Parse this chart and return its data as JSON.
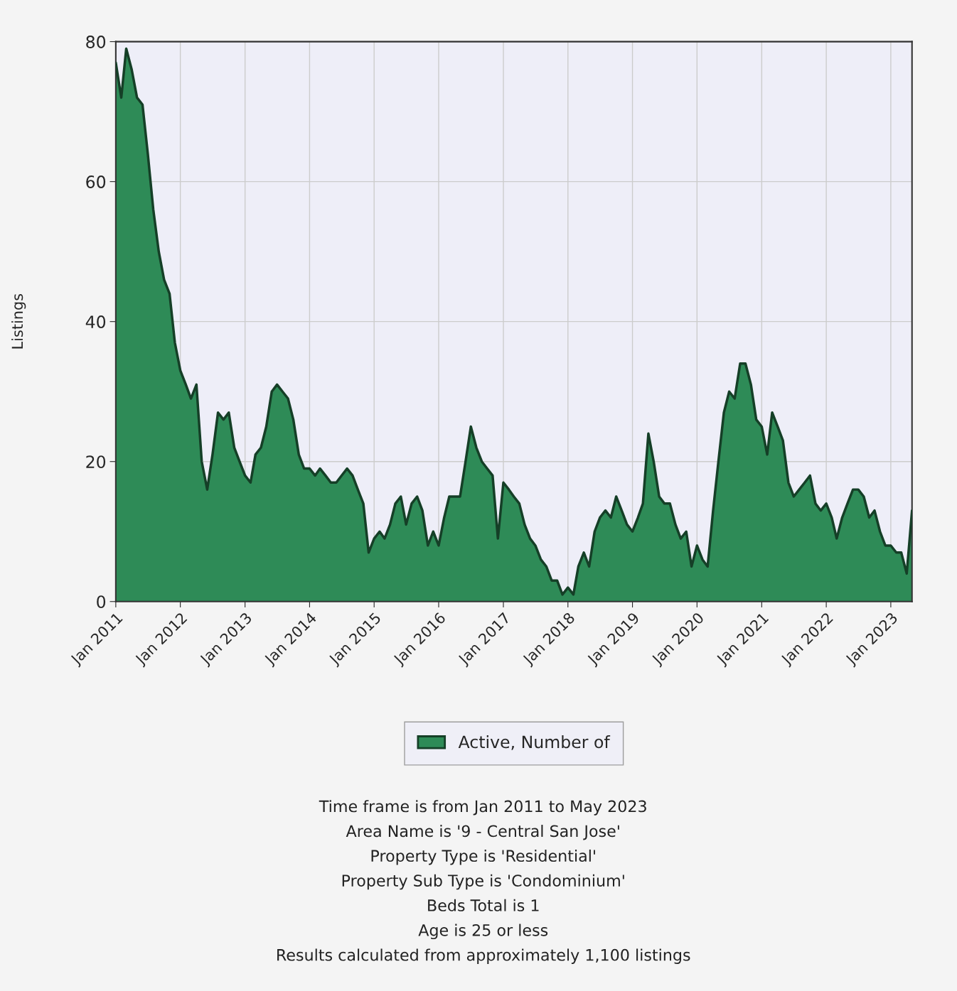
{
  "chart_data": {
    "type": "area",
    "ylabel": "Listings",
    "x": [
      "2011-01",
      "2011-02",
      "2011-03",
      "2011-04",
      "2011-05",
      "2011-06",
      "2011-07",
      "2011-08",
      "2011-09",
      "2011-10",
      "2011-11",
      "2011-12",
      "2012-01",
      "2012-02",
      "2012-03",
      "2012-04",
      "2012-05",
      "2012-06",
      "2012-07",
      "2012-08",
      "2012-09",
      "2012-10",
      "2012-11",
      "2012-12",
      "2013-01",
      "2013-02",
      "2013-03",
      "2013-04",
      "2013-05",
      "2013-06",
      "2013-07",
      "2013-08",
      "2013-09",
      "2013-10",
      "2013-11",
      "2013-12",
      "2014-01",
      "2014-02",
      "2014-03",
      "2014-04",
      "2014-05",
      "2014-06",
      "2014-07",
      "2014-08",
      "2014-09",
      "2014-10",
      "2014-11",
      "2014-12",
      "2015-01",
      "2015-02",
      "2015-03",
      "2015-04",
      "2015-05",
      "2015-06",
      "2015-07",
      "2015-08",
      "2015-09",
      "2015-10",
      "2015-11",
      "2015-12",
      "2016-01",
      "2016-02",
      "2016-03",
      "2016-04",
      "2016-05",
      "2016-06",
      "2016-07",
      "2016-08",
      "2016-09",
      "2016-10",
      "2016-11",
      "2016-12",
      "2017-01",
      "2017-02",
      "2017-03",
      "2017-04",
      "2017-05",
      "2017-06",
      "2017-07",
      "2017-08",
      "2017-09",
      "2017-10",
      "2017-11",
      "2017-12",
      "2018-01",
      "2018-02",
      "2018-03",
      "2018-04",
      "2018-05",
      "2018-06",
      "2018-07",
      "2018-08",
      "2018-09",
      "2018-10",
      "2018-11",
      "2018-12",
      "2019-01",
      "2019-02",
      "2019-03",
      "2019-04",
      "2019-05",
      "2019-06",
      "2019-07",
      "2019-08",
      "2019-09",
      "2019-10",
      "2019-11",
      "2019-12",
      "2020-01",
      "2020-02",
      "2020-03",
      "2020-04",
      "2020-05",
      "2020-06",
      "2020-07",
      "2020-08",
      "2020-09",
      "2020-10",
      "2020-11",
      "2020-12",
      "2021-01",
      "2021-02",
      "2021-03",
      "2021-04",
      "2021-05",
      "2021-06",
      "2021-07",
      "2021-08",
      "2021-09",
      "2021-10",
      "2021-11",
      "2021-12",
      "2022-01",
      "2022-02",
      "2022-03",
      "2022-04",
      "2022-05",
      "2022-06",
      "2022-07",
      "2022-08",
      "2022-09",
      "2022-10",
      "2022-11",
      "2022-12",
      "2023-01",
      "2023-02",
      "2023-03",
      "2023-04",
      "2023-05"
    ],
    "series": [
      {
        "name": "Active, Number of",
        "color": "#2e8b57",
        "values": [
          77,
          72,
          79,
          76,
          72,
          71,
          64,
          56,
          50,
          46,
          44,
          37,
          33,
          31,
          29,
          31,
          20,
          16,
          21,
          27,
          26,
          27,
          22,
          20,
          18,
          17,
          21,
          22,
          25,
          30,
          31,
          30,
          29,
          26,
          21,
          19,
          19,
          18,
          19,
          18,
          17,
          17,
          18,
          19,
          18,
          16,
          14,
          7,
          9,
          10,
          9,
          11,
          14,
          15,
          11,
          14,
          15,
          13,
          8,
          10,
          8,
          12,
          15,
          15,
          15,
          20,
          25,
          22,
          20,
          19,
          18,
          9,
          17,
          16,
          15,
          14,
          11,
          9,
          8,
          6,
          5,
          3,
          3,
          1,
          2,
          1,
          5,
          7,
          5,
          10,
          12,
          13,
          12,
          15,
          13,
          11,
          10,
          12,
          14,
          24,
          20,
          15,
          14,
          14,
          11,
          9,
          10,
          5,
          8,
          6,
          5,
          13,
          20,
          27,
          30,
          29,
          34,
          34,
          31,
          26,
          25,
          21,
          27,
          25,
          23,
          17,
          15,
          16,
          17,
          18,
          14,
          13,
          14,
          12,
          9,
          12,
          14,
          16,
          16,
          15,
          12,
          13,
          10,
          8,
          8,
          7,
          7,
          4,
          13
        ]
      }
    ],
    "xlim": [
      "2011-01",
      "2023-05"
    ],
    "xticks": [
      {
        "value": "2011-01",
        "label": "Jan 2011"
      },
      {
        "value": "2012-01",
        "label": "Jan 2012"
      },
      {
        "value": "2013-01",
        "label": "Jan 2013"
      },
      {
        "value": "2014-01",
        "label": "Jan 2014"
      },
      {
        "value": "2015-01",
        "label": "Jan 2015"
      },
      {
        "value": "2016-01",
        "label": "Jan 2016"
      },
      {
        "value": "2017-01",
        "label": "Jan 2017"
      },
      {
        "value": "2018-01",
        "label": "Jan 2018"
      },
      {
        "value": "2019-01",
        "label": "Jan 2019"
      },
      {
        "value": "2020-01",
        "label": "Jan 2020"
      },
      {
        "value": "2021-01",
        "label": "Jan 2021"
      },
      {
        "value": "2022-01",
        "label": "Jan 2022"
      },
      {
        "value": "2023-01",
        "label": "Jan 2023"
      }
    ],
    "ylim": [
      0,
      80
    ],
    "yticks": [
      0,
      20,
      40,
      60,
      80
    ],
    "grid": true,
    "legend": "bottom",
    "annotations": [
      "Time frame is from Jan 2011 to May 2023",
      "Area Name is '9 - Central San Jose'",
      "Property Type is 'Residential'",
      "Property Sub Type is 'Condominium'",
      "Beds Total is 1",
      "Age is 25 or less",
      "Results calculated from approximately 1,100 listings"
    ]
  }
}
